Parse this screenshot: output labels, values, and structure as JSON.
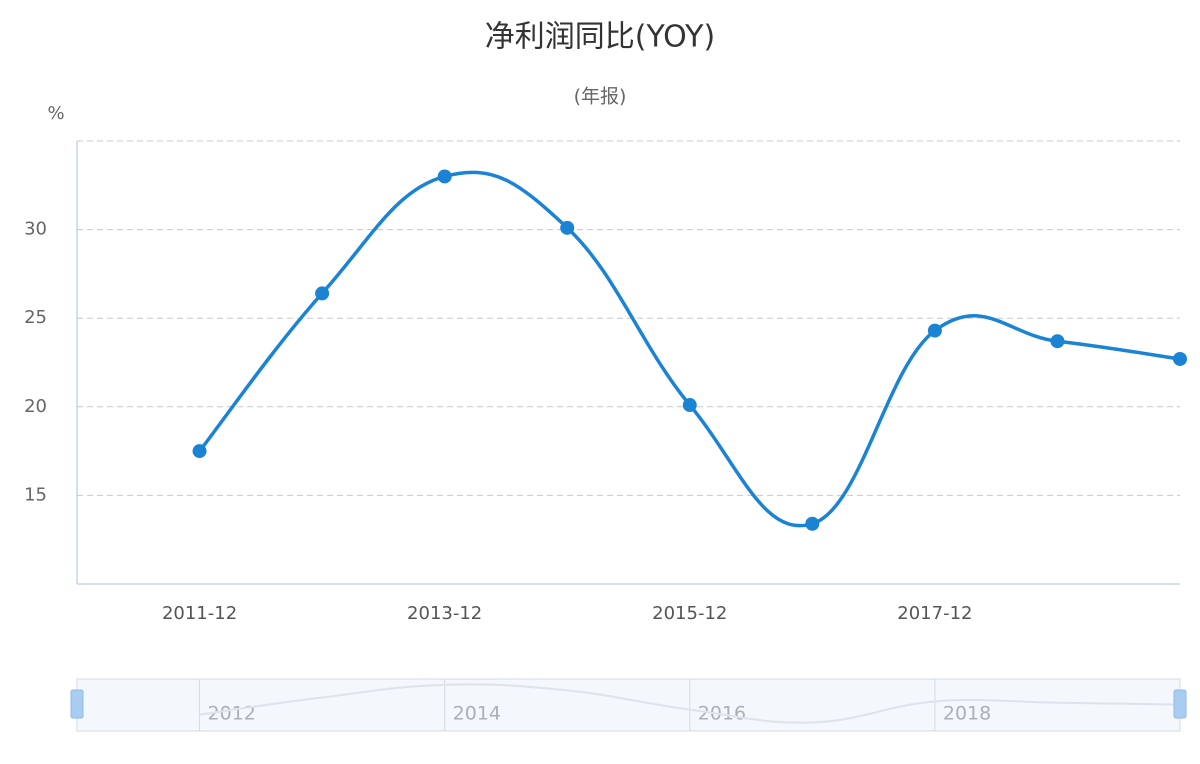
{
  "chart_data": {
    "type": "line",
    "title": "净利润同比(YOY)",
    "subtitle": "(年报)",
    "y_unit": "%",
    "categories": [
      "2011-12",
      null,
      "2013-12",
      null,
      "2015-12",
      null,
      "2017-12",
      null,
      null
    ],
    "series": [
      {
        "name": "净利润同比",
        "color": "#1a83d4",
        "values": [
          17.5,
          26.4,
          33.0,
          30.1,
          20.1,
          13.4,
          24.3,
          23.7,
          22.7
        ]
      }
    ],
    "ylim": [
      10,
      35
    ],
    "yticks": [
      15,
      20,
      25,
      30
    ],
    "grid": true,
    "navigator": {
      "labels": [
        "2012",
        "2014",
        "2016",
        "2018"
      ]
    }
  }
}
